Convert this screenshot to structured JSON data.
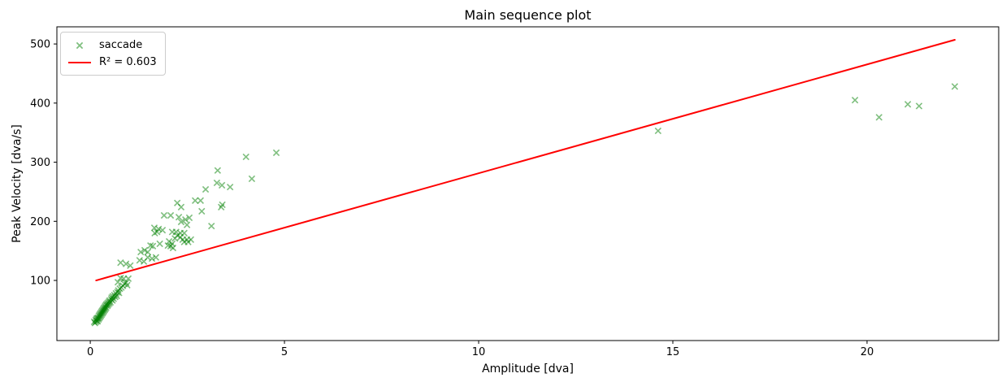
{
  "chart_data": {
    "type": "scatter",
    "title": "Main sequence plot",
    "xlabel": "Amplitude [dva]",
    "ylabel": "Peak Velocity [dva/s]",
    "xlim": [
      -0.86,
      23.39
    ],
    "ylim": [
      -1.7,
      529
    ],
    "xticks": [
      0,
      5,
      10,
      15,
      20
    ],
    "yticks": [
      100,
      200,
      300,
      400,
      500
    ],
    "grid": false,
    "colors": {
      "marker": "#008000",
      "marker_alpha": 0.5,
      "fit_line": "#ff0000",
      "spine": "#000000"
    },
    "legend": {
      "position": "upper-left",
      "entries": [
        {
          "label": "saccade",
          "type": "marker-x",
          "color": "#008000",
          "alpha": 0.5
        },
        {
          "label": "R² = 0.603",
          "type": "line",
          "color": "#ff0000"
        }
      ]
    },
    "fit_line": {
      "label": "R² = 0.603",
      "color": "#ff0000",
      "linewidth": 2,
      "x0": 0.15,
      "y0": 100,
      "x1": 22.26,
      "y1": 507
    },
    "series": [
      {
        "name": "saccade",
        "marker": "x",
        "color": "#008000",
        "alpha": 0.5,
        "points": [
          [
            0.1,
            30
          ],
          [
            0.12,
            28
          ],
          [
            0.14,
            33
          ],
          [
            0.15,
            30
          ],
          [
            0.16,
            35
          ],
          [
            0.17,
            32
          ],
          [
            0.18,
            36
          ],
          [
            0.19,
            31
          ],
          [
            0.2,
            37
          ],
          [
            0.21,
            34
          ],
          [
            0.22,
            40
          ],
          [
            0.23,
            36
          ],
          [
            0.24,
            42
          ],
          [
            0.25,
            38
          ],
          [
            0.26,
            44
          ],
          [
            0.27,
            40
          ],
          [
            0.28,
            46
          ],
          [
            0.29,
            42
          ],
          [
            0.3,
            48
          ],
          [
            0.31,
            44
          ],
          [
            0.32,
            50
          ],
          [
            0.33,
            46
          ],
          [
            0.34,
            52
          ],
          [
            0.35,
            48
          ],
          [
            0.36,
            54
          ],
          [
            0.37,
            50
          ],
          [
            0.38,
            56
          ],
          [
            0.39,
            52
          ],
          [
            0.4,
            58
          ],
          [
            0.41,
            54
          ],
          [
            0.42,
            60
          ],
          [
            0.44,
            57
          ],
          [
            0.45,
            62
          ],
          [
            0.46,
            59
          ],
          [
            0.48,
            64
          ],
          [
            0.49,
            61
          ],
          [
            0.5,
            66
          ],
          [
            0.52,
            63
          ],
          [
            0.54,
            68
          ],
          [
            0.55,
            71
          ],
          [
            0.57,
            66
          ],
          [
            0.58,
            73
          ],
          [
            0.6,
            69
          ],
          [
            0.62,
            75
          ],
          [
            0.64,
            72
          ],
          [
            0.66,
            78
          ],
          [
            0.68,
            74
          ],
          [
            0.7,
            80
          ],
          [
            0.72,
            83
          ],
          [
            0.74,
            79
          ],
          [
            0.76,
            86
          ],
          [
            0.8,
            88
          ],
          [
            0.84,
            91
          ],
          [
            0.88,
            94
          ],
          [
            0.95,
            92
          ],
          [
            0.71,
            97
          ],
          [
            0.78,
            104
          ],
          [
            0.86,
            103
          ],
          [
            0.92,
            96
          ],
          [
            0.98,
            103
          ],
          [
            0.78,
            130
          ],
          [
            0.92,
            128
          ],
          [
            1.03,
            125
          ],
          [
            1.27,
            134
          ],
          [
            1.38,
            132
          ],
          [
            1.48,
            139
          ],
          [
            1.59,
            137
          ],
          [
            1.69,
            139
          ],
          [
            1.3,
            148
          ],
          [
            1.4,
            151
          ],
          [
            1.48,
            148
          ],
          [
            1.55,
            159
          ],
          [
            1.61,
            158
          ],
          [
            1.79,
            162
          ],
          [
            2.0,
            159
          ],
          [
            2.03,
            166
          ],
          [
            2.07,
            158
          ],
          [
            2.11,
            162
          ],
          [
            2.13,
            155
          ],
          [
            1.65,
            189
          ],
          [
            1.76,
            187
          ],
          [
            1.86,
            185
          ],
          [
            1.72,
            182
          ],
          [
            1.66,
            180
          ],
          [
            2.11,
            182
          ],
          [
            2.21,
            182
          ],
          [
            2.32,
            180
          ],
          [
            2.42,
            180
          ],
          [
            2.24,
            176
          ],
          [
            2.32,
            173
          ],
          [
            2.18,
            171
          ],
          [
            2.38,
            169
          ],
          [
            2.49,
            169
          ],
          [
            2.42,
            165
          ],
          [
            2.52,
            165
          ],
          [
            2.59,
            169
          ],
          [
            1.9,
            210
          ],
          [
            2.07,
            210
          ],
          [
            2.28,
            207
          ],
          [
            2.45,
            203
          ],
          [
            2.55,
            206
          ],
          [
            2.34,
            199
          ],
          [
            2.49,
            194
          ],
          [
            3.12,
            192
          ],
          [
            2.24,
            231
          ],
          [
            2.34,
            224
          ],
          [
            2.7,
            235
          ],
          [
            2.84,
            235
          ],
          [
            2.87,
            217
          ],
          [
            3.37,
            224
          ],
          [
            3.4,
            228
          ],
          [
            2.97,
            254
          ],
          [
            3.26,
            265
          ],
          [
            3.39,
            261
          ],
          [
            3.6,
            258
          ],
          [
            3.28,
            286
          ],
          [
            4.16,
            272
          ],
          [
            4.01,
            309
          ],
          [
            4.79,
            316
          ],
          [
            14.62,
            353
          ],
          [
            19.69,
            405
          ],
          [
            20.31,
            376
          ],
          [
            21.05,
            398
          ],
          [
            21.34,
            395
          ],
          [
            22.26,
            428
          ]
        ]
      }
    ]
  }
}
